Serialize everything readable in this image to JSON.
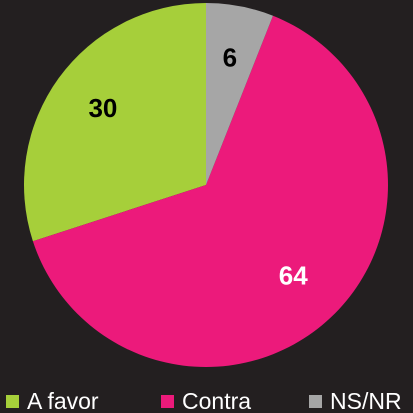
{
  "chart_data": {
    "type": "pie",
    "categories": [
      "A favor",
      "Contra",
      "NS/NR"
    ],
    "values": [
      30,
      64,
      6
    ],
    "colors": [
      "#a6cf3a",
      "#ec1a7b",
      "#a6a6a6"
    ],
    "label_colors": [
      "#000000",
      "#ffffff",
      "#000000"
    ],
    "direction": "counterclockwise",
    "start": "top",
    "legend": "bottom"
  }
}
